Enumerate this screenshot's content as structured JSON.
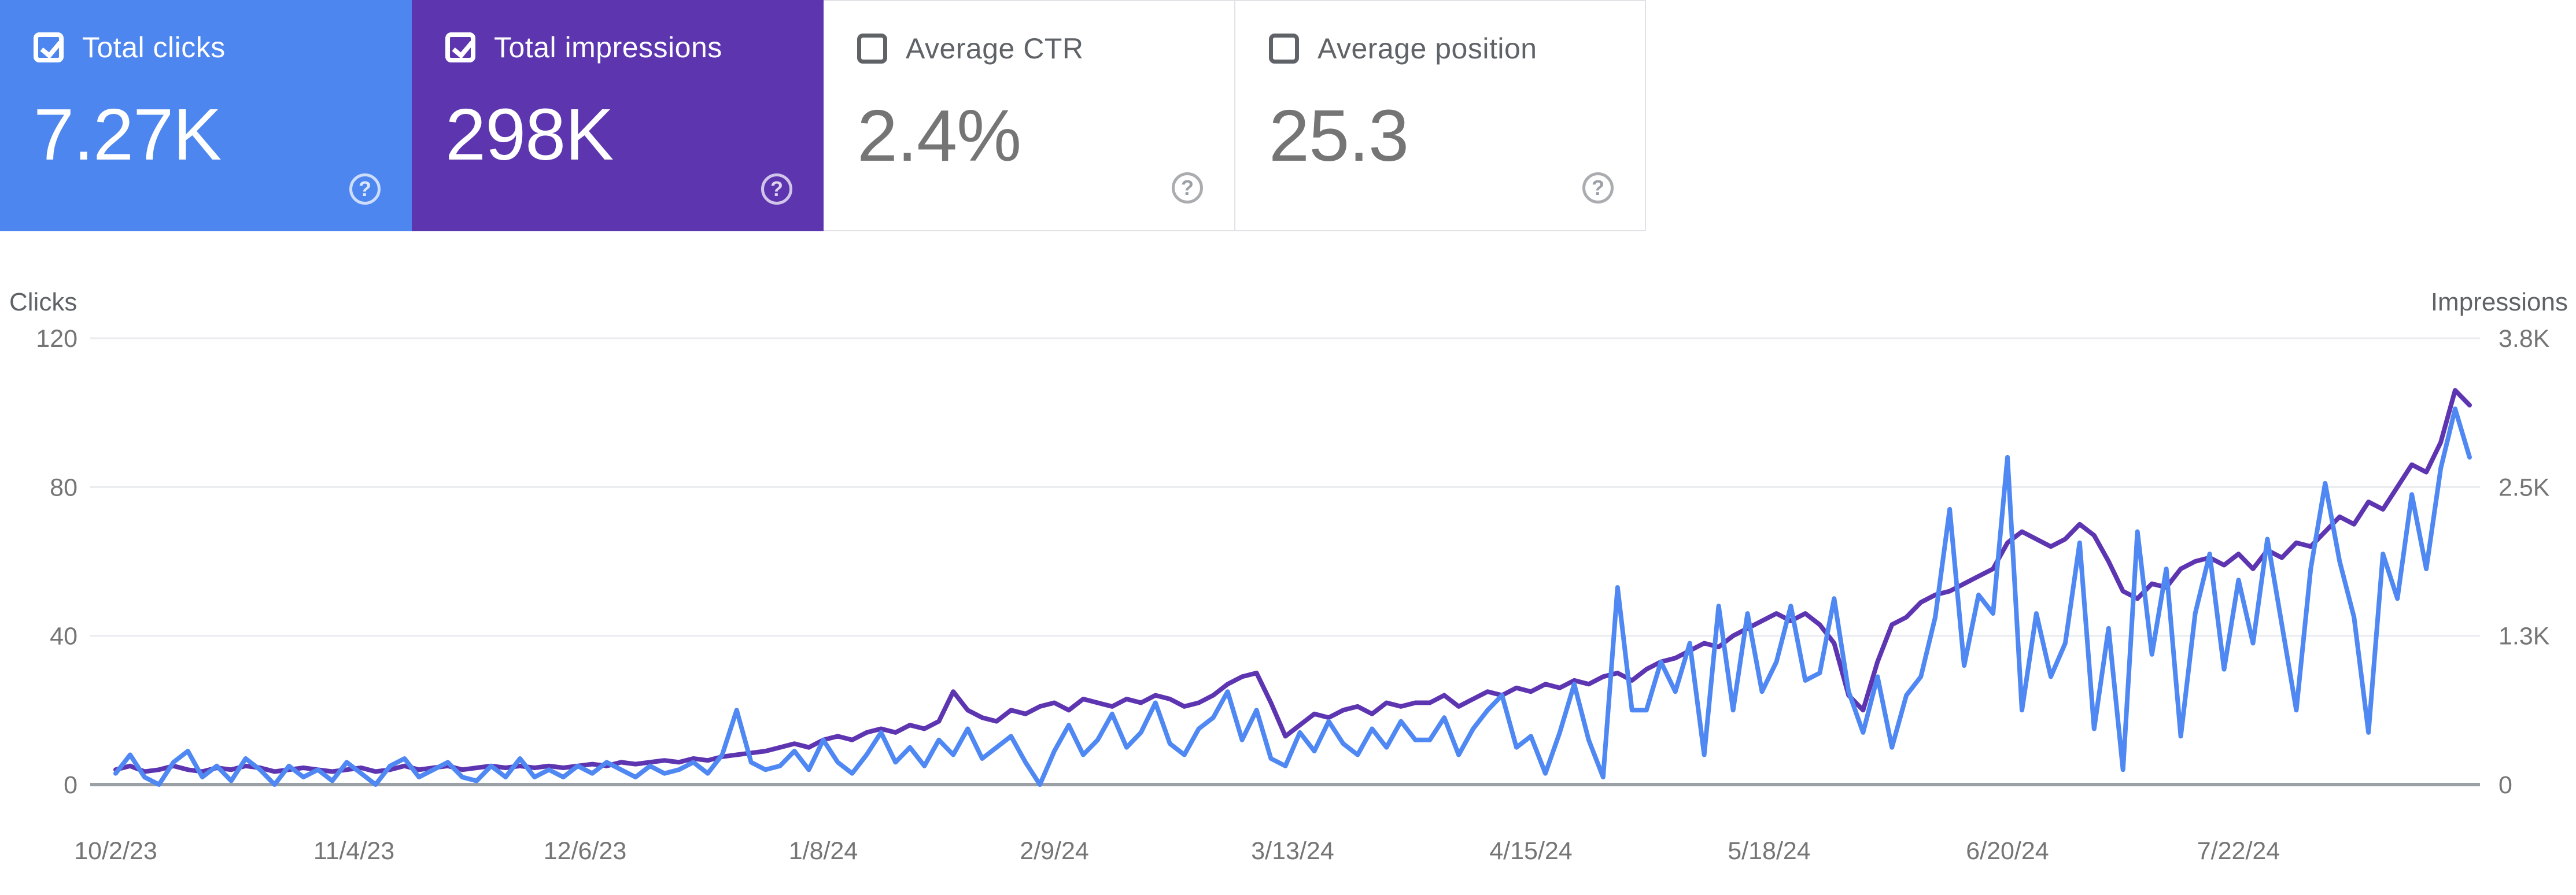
{
  "ui": {
    "help_glyph": "?"
  },
  "cards": [
    {
      "id": "total-clicks",
      "label": "Total clicks",
      "value": "7.27K",
      "checked": true,
      "color": "#4d86ef"
    },
    {
      "id": "total-impressions",
      "label": "Total impressions",
      "value": "298K",
      "checked": true,
      "color": "#5c35af"
    },
    {
      "id": "average-ctr",
      "label": "Average CTR",
      "value": "2.4%",
      "checked": false,
      "color": null
    },
    {
      "id": "average-position",
      "label": "Average position",
      "value": "25.3",
      "checked": false,
      "color": null
    }
  ],
  "chart_data": {
    "type": "line",
    "start_date": "10/2/23",
    "end_date": "8/23/24",
    "point_interval_days": 2,
    "grid": true,
    "legend": "none",
    "left_axis": {
      "title": "Clicks",
      "max": 120,
      "ticks": [
        {
          "label": "120",
          "value": 120
        },
        {
          "label": "80",
          "value": 80
        },
        {
          "label": "40",
          "value": 40
        },
        {
          "label": "0",
          "value": 0
        }
      ]
    },
    "right_axis": {
      "title": "Impressions",
      "max": 3840,
      "ticks": [
        {
          "label": "3.8K",
          "value": 3840
        },
        {
          "label": "2.5K",
          "value": 2560
        },
        {
          "label": "1.3K",
          "value": 1280
        },
        {
          "label": "0",
          "value": 0
        }
      ]
    },
    "x_ticks": [
      {
        "label": "10/2/23",
        "index": 0
      },
      {
        "label": "11/4/23",
        "index": 16.5
      },
      {
        "label": "12/6/23",
        "index": 32.5
      },
      {
        "label": "1/8/24",
        "index": 49
      },
      {
        "label": "2/9/24",
        "index": 65
      },
      {
        "label": "3/13/24",
        "index": 81.5
      },
      {
        "label": "4/15/24",
        "index": 98
      },
      {
        "label": "5/18/24",
        "index": 114.5
      },
      {
        "label": "6/20/24",
        "index": 131
      },
      {
        "label": "7/22/24",
        "index": 147
      }
    ],
    "series": [
      {
        "name": "Total clicks",
        "axis": "left",
        "color": "#4f88f3",
        "values": [
          3,
          8,
          2,
          0,
          6,
          9,
          2,
          5,
          1,
          7,
          4,
          0,
          5,
          2,
          4,
          1,
          6,
          3,
          0,
          5,
          7,
          2,
          4,
          6,
          2,
          1,
          5,
          2,
          7,
          2,
          4,
          2,
          5,
          3,
          6,
          4,
          2,
          5,
          3,
          4,
          6,
          3,
          8,
          20,
          6,
          4,
          5,
          9,
          4,
          12,
          6,
          3,
          8,
          14,
          6,
          10,
          5,
          12,
          8,
          15,
          7,
          10,
          13,
          6,
          0,
          9,
          16,
          8,
          12,
          19,
          10,
          14,
          22,
          11,
          8,
          15,
          18,
          25,
          12,
          20,
          7,
          5,
          14,
          9,
          17,
          11,
          8,
          15,
          10,
          17,
          12,
          12,
          18,
          8,
          15,
          20,
          24,
          10,
          13,
          3,
          14,
          27,
          12,
          2,
          53,
          20,
          20,
          33,
          25,
          38,
          8,
          48,
          20,
          46,
          25,
          33,
          48,
          28,
          30,
          50,
          25,
          14,
          29,
          10,
          24,
          29,
          45,
          74,
          32,
          51,
          46,
          88,
          20,
          46,
          29,
          38,
          65,
          15,
          42,
          4,
          68,
          35,
          58,
          13,
          46,
          62,
          31,
          55,
          38,
          66,
          43,
          20,
          58,
          81,
          60,
          45,
          14,
          62,
          50,
          78,
          58,
          85,
          101,
          88
        ]
      },
      {
        "name": "Total impressions",
        "axis": "right",
        "color": "#5e35b1",
        "values": [
          128,
          160,
          112,
          128,
          160,
          128,
          112,
          144,
          128,
          160,
          144,
          112,
          128,
          144,
          128,
          112,
          128,
          144,
          112,
          128,
          160,
          128,
          144,
          160,
          128,
          144,
          160,
          144,
          160,
          144,
          160,
          144,
          160,
          176,
          160,
          192,
          176,
          192,
          208,
          192,
          224,
          208,
          240,
          256,
          272,
          288,
          320,
          352,
          320,
          384,
          416,
          384,
          448,
          480,
          448,
          512,
          480,
          544,
          800,
          640,
          576,
          544,
          640,
          608,
          672,
          704,
          640,
          736,
          704,
          672,
          736,
          704,
          768,
          736,
          672,
          704,
          768,
          864,
          928,
          960,
          704,
          416,
          512,
          608,
          576,
          640,
          672,
          608,
          704,
          672,
          704,
          704,
          768,
          672,
          736,
          800,
          768,
          832,
          800,
          864,
          832,
          896,
          864,
          928,
          960,
          896,
          992,
          1056,
          1088,
          1152,
          1216,
          1184,
          1280,
          1344,
          1408,
          1472,
          1408,
          1472,
          1376,
          1216,
          768,
          640,
          1056,
          1376,
          1440,
          1568,
          1632,
          1664,
          1728,
          1792,
          1856,
          2080,
          2176,
          2112,
          2048,
          2112,
          2240,
          2144,
          1920,
          1664,
          1600,
          1728,
          1696,
          1856,
          1920,
          1952,
          1888,
          1984,
          1856,
          2016,
          1952,
          2080,
          2048,
          2176,
          2304,
          2240,
          2432,
          2368,
          2560,
          2752,
          2688,
          2944,
          3392,
          3264
        ]
      }
    ]
  }
}
